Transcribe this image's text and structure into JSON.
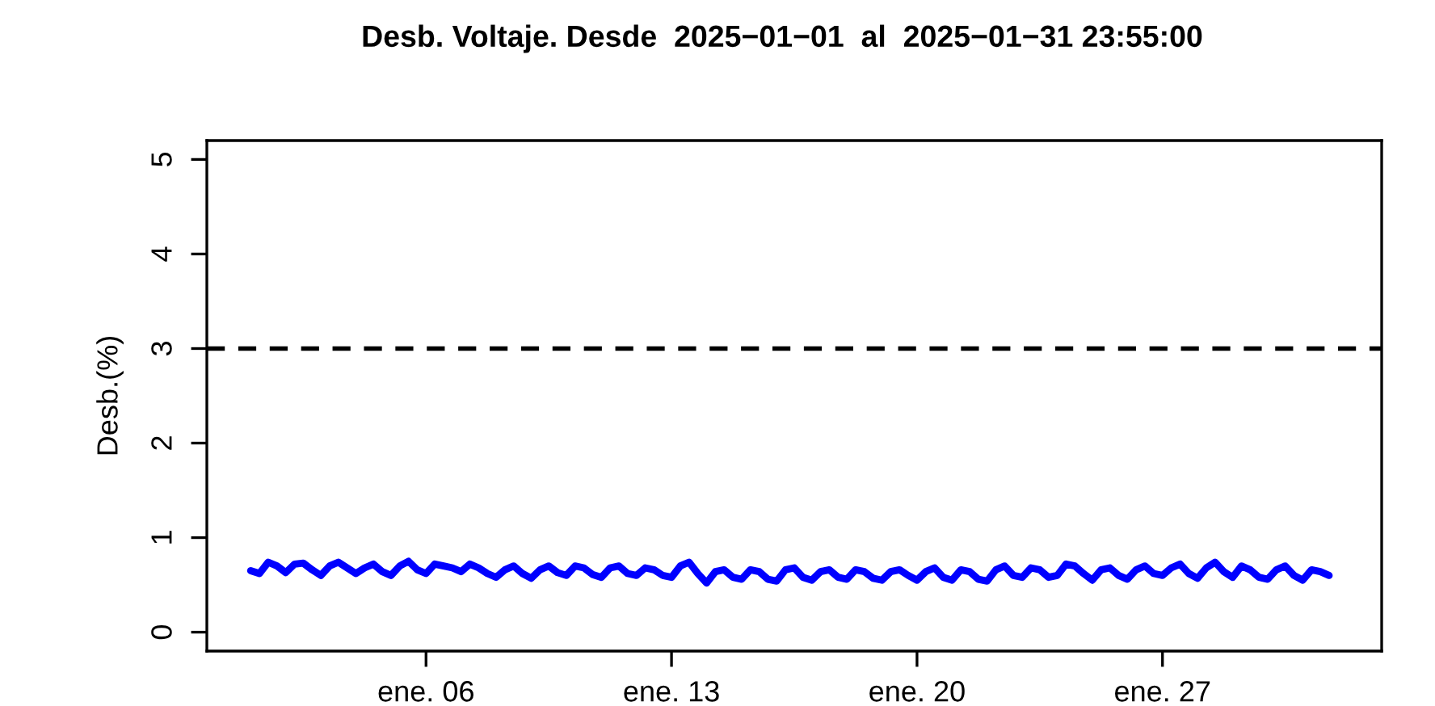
{
  "chart_data": {
    "type": "line",
    "title": "Desb. Voltaje. Desde  2025−01−01  al  2025−01−31 23:55:00",
    "ylabel": "Desb.(%)",
    "x": [
      "2025-01-01T00:00",
      "2025-01-01T06:00",
      "2025-01-01T12:00",
      "2025-01-01T18:00",
      "2025-01-02T00:00",
      "2025-01-02T06:00",
      "2025-01-02T12:00",
      "2025-01-02T18:00",
      "2025-01-03T00:00",
      "2025-01-03T06:00",
      "2025-01-03T12:00",
      "2025-01-03T18:00",
      "2025-01-04T00:00",
      "2025-01-04T06:00",
      "2025-01-04T12:00",
      "2025-01-04T18:00",
      "2025-01-05T00:00",
      "2025-01-05T06:00",
      "2025-01-05T12:00",
      "2025-01-05T18:00",
      "2025-01-06T00:00",
      "2025-01-06T06:00",
      "2025-01-06T12:00",
      "2025-01-06T18:00",
      "2025-01-07T00:00",
      "2025-01-07T06:00",
      "2025-01-07T12:00",
      "2025-01-07T18:00",
      "2025-01-08T00:00",
      "2025-01-08T06:00",
      "2025-01-08T12:00",
      "2025-01-08T18:00",
      "2025-01-09T00:00",
      "2025-01-09T06:00",
      "2025-01-09T12:00",
      "2025-01-09T18:00",
      "2025-01-10T00:00",
      "2025-01-10T06:00",
      "2025-01-10T12:00",
      "2025-01-10T18:00",
      "2025-01-11T00:00",
      "2025-01-11T06:00",
      "2025-01-11T12:00",
      "2025-01-11T18:00",
      "2025-01-12T00:00",
      "2025-01-12T06:00",
      "2025-01-12T12:00",
      "2025-01-12T18:00",
      "2025-01-13T00:00",
      "2025-01-13T06:00",
      "2025-01-13T12:00",
      "2025-01-13T18:00",
      "2025-01-14T00:00",
      "2025-01-14T06:00",
      "2025-01-14T12:00",
      "2025-01-14T18:00",
      "2025-01-15T00:00",
      "2025-01-15T06:00",
      "2025-01-15T12:00",
      "2025-01-15T18:00",
      "2025-01-16T00:00",
      "2025-01-16T06:00",
      "2025-01-16T12:00",
      "2025-01-16T18:00",
      "2025-01-17T00:00",
      "2025-01-17T06:00",
      "2025-01-17T12:00",
      "2025-01-17T18:00",
      "2025-01-18T00:00",
      "2025-01-18T06:00",
      "2025-01-18T12:00",
      "2025-01-18T18:00",
      "2025-01-19T00:00",
      "2025-01-19T06:00",
      "2025-01-19T12:00",
      "2025-01-19T18:00",
      "2025-01-20T00:00",
      "2025-01-20T06:00",
      "2025-01-20T12:00",
      "2025-01-20T18:00",
      "2025-01-21T00:00",
      "2025-01-21T06:00",
      "2025-01-21T12:00",
      "2025-01-21T18:00",
      "2025-01-22T00:00",
      "2025-01-22T06:00",
      "2025-01-22T12:00",
      "2025-01-22T18:00",
      "2025-01-23T00:00",
      "2025-01-23T06:00",
      "2025-01-23T12:00",
      "2025-01-23T18:00",
      "2025-01-24T00:00",
      "2025-01-24T06:00",
      "2025-01-24T12:00",
      "2025-01-24T18:00",
      "2025-01-25T00:00",
      "2025-01-25T06:00",
      "2025-01-25T12:00",
      "2025-01-25T18:00",
      "2025-01-26T00:00",
      "2025-01-26T06:00",
      "2025-01-26T12:00",
      "2025-01-26T18:00",
      "2025-01-27T00:00",
      "2025-01-27T06:00",
      "2025-01-27T12:00",
      "2025-01-27T18:00",
      "2025-01-28T00:00",
      "2025-01-28T06:00",
      "2025-01-28T12:00",
      "2025-01-28T18:00",
      "2025-01-29T00:00",
      "2025-01-29T06:00",
      "2025-01-29T12:00",
      "2025-01-29T18:00",
      "2025-01-30T00:00",
      "2025-01-30T06:00",
      "2025-01-30T12:00",
      "2025-01-30T18:00",
      "2025-01-31T00:00",
      "2025-01-31T06:00",
      "2025-01-31T12:00",
      "2025-01-31T18:00"
    ],
    "series": [
      {
        "color": "#0000ff",
        "values": [
          0.65,
          0.62,
          0.74,
          0.7,
          0.63,
          0.72,
          0.73,
          0.66,
          0.6,
          0.7,
          0.74,
          0.68,
          0.62,
          0.68,
          0.72,
          0.64,
          0.6,
          0.7,
          0.75,
          0.66,
          0.62,
          0.72,
          0.7,
          0.68,
          0.64,
          0.72,
          0.68,
          0.62,
          0.58,
          0.66,
          0.7,
          0.62,
          0.57,
          0.66,
          0.7,
          0.63,
          0.6,
          0.7,
          0.68,
          0.61,
          0.58,
          0.68,
          0.7,
          0.62,
          0.6,
          0.68,
          0.66,
          0.6,
          0.58,
          0.7,
          0.74,
          0.62,
          0.52,
          0.64,
          0.66,
          0.58,
          0.56,
          0.66,
          0.64,
          0.56,
          0.54,
          0.66,
          0.68,
          0.58,
          0.55,
          0.64,
          0.66,
          0.58,
          0.56,
          0.66,
          0.64,
          0.57,
          0.55,
          0.64,
          0.66,
          0.6,
          0.55,
          0.64,
          0.68,
          0.58,
          0.55,
          0.66,
          0.64,
          0.56,
          0.54,
          0.66,
          0.7,
          0.6,
          0.58,
          0.68,
          0.66,
          0.58,
          0.6,
          0.72,
          0.7,
          0.62,
          0.55,
          0.66,
          0.68,
          0.6,
          0.56,
          0.66,
          0.7,
          0.62,
          0.6,
          0.68,
          0.72,
          0.62,
          0.57,
          0.68,
          0.74,
          0.64,
          0.58,
          0.7,
          0.66,
          0.58,
          0.56,
          0.66,
          0.7,
          0.6,
          0.55,
          0.66,
          0.64,
          0.6
        ]
      }
    ],
    "xlim": [
      "2024-12-30T18:00",
      "2025-02-02T06:00"
    ],
    "xticks": [
      {
        "value": "2025-01-06",
        "label": "ene. 06"
      },
      {
        "value": "2025-01-13",
        "label": "ene. 13"
      },
      {
        "value": "2025-01-20",
        "label": "ene. 20"
      },
      {
        "value": "2025-01-27",
        "label": "ene. 27"
      }
    ],
    "ylim": [
      -0.2,
      5.2
    ],
    "yticks": [
      0,
      1,
      2,
      3,
      4,
      5
    ],
    "ref_lines": [
      {
        "axis": "y",
        "value": 3,
        "color": "#000000",
        "line_style": "dashed"
      }
    ],
    "line_style": "solid",
    "marker": "none",
    "grid": false,
    "legend": false
  }
}
